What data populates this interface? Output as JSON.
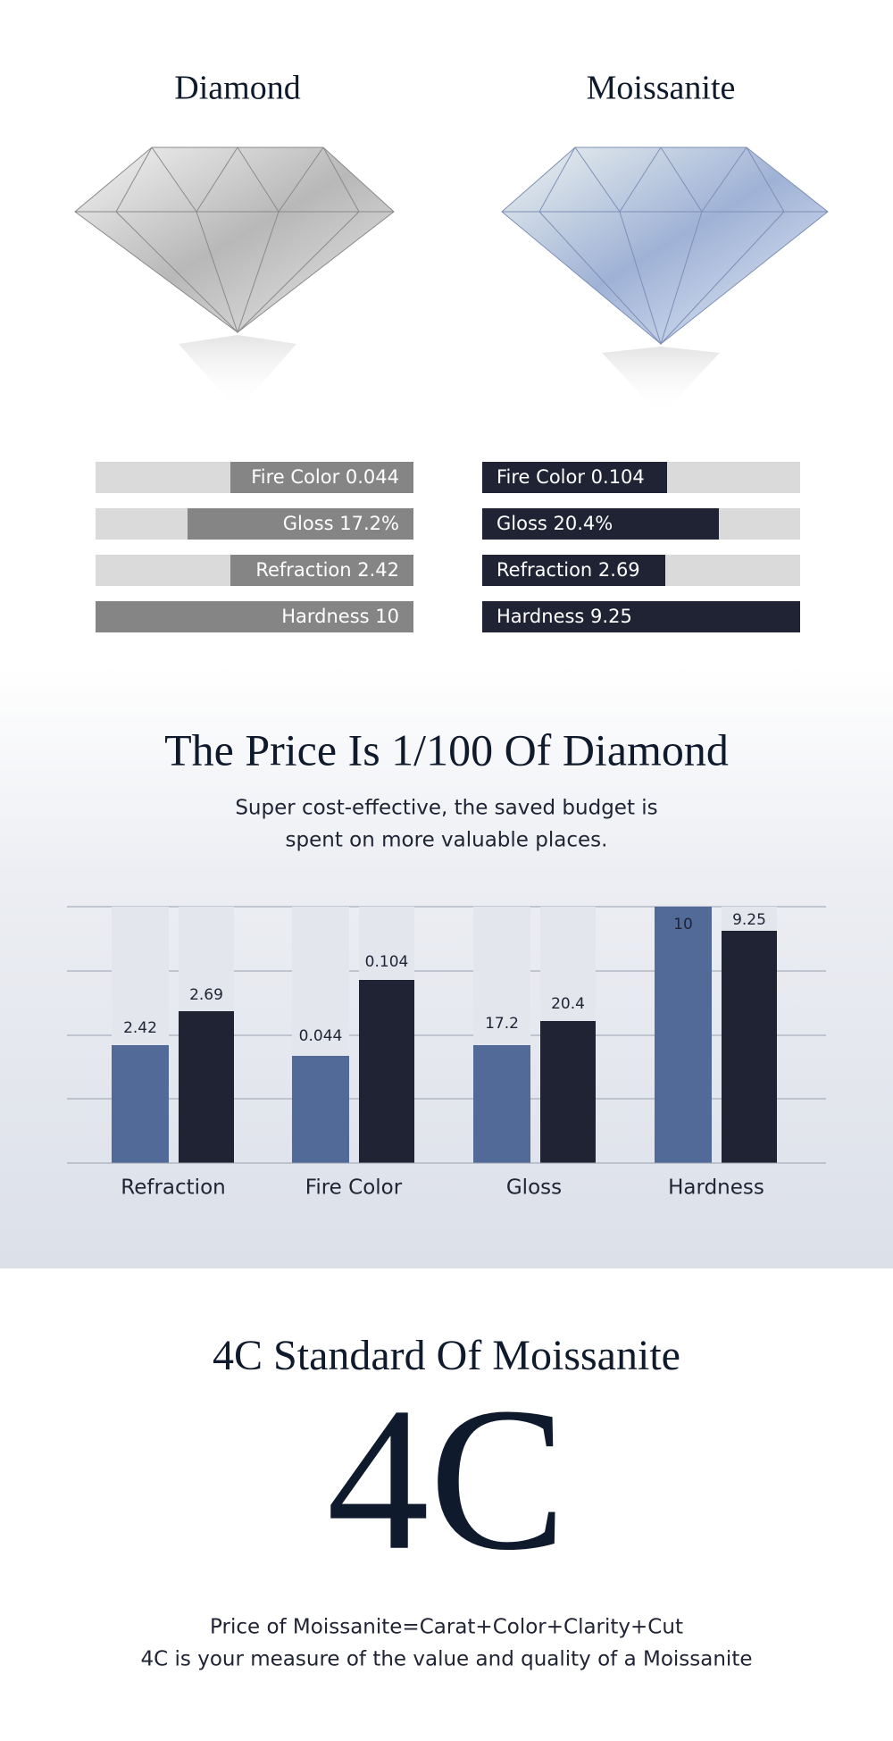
{
  "gems": [
    {
      "name": "Diamond",
      "properties": [
        "Fire Color 0.044",
        "Gloss 17.2%",
        "Refraction 2.42",
        "Hardness 10"
      ]
    },
    {
      "name": "Moissanite",
      "properties": [
        "Fire Color 0.104",
        "Gloss 20.4%",
        "Refraction 2.69",
        "Hardness 9.25"
      ]
    }
  ],
  "price": {
    "title": "The Price Is 1/100 Of Diamond",
    "subtitle": [
      "Super cost-effective, the saved budget is",
      "spent on more valuable places."
    ]
  },
  "comparison": {
    "groups": [
      {
        "category": "Refraction",
        "labels": [
          "2.42",
          "2.69"
        ]
      },
      {
        "category": "Fire Color",
        "labels": [
          "0.044",
          "0.104"
        ]
      },
      {
        "category": "Gloss",
        "labels": [
          "17.2",
          "20.4"
        ]
      },
      {
        "category": "Hardness",
        "labels": [
          "10",
          "9.25"
        ]
      }
    ]
  },
  "standard": {
    "title": "4C Standard Of Moissanite",
    "emblem": "4C",
    "lines": [
      "Price of Moissanite=Carat+Color+Clarity+Cut",
      "4C is your measure of the value and quality of a Moissanite"
    ]
  }
}
